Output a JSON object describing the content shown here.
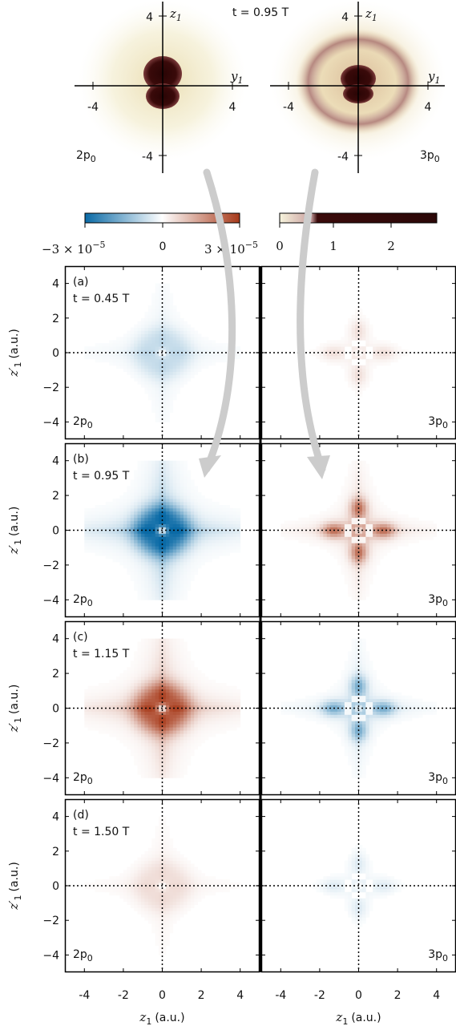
{
  "top": {
    "title": "t = 0.95 T",
    "left": {
      "state": "2p",
      "state_sub": "0",
      "vaxis_label": "z",
      "vaxis_sub": "1",
      "haxis_label": "y",
      "haxis_sub": "1",
      "ticks": {
        "left": "-4",
        "right": "4",
        "top": "4",
        "bottom": "-4"
      }
    },
    "right": {
      "state": "3p",
      "state_sub": "0",
      "vaxis_label": "z",
      "vaxis_sub": "1",
      "haxis_label": "y",
      "haxis_sub": "1",
      "ticks": {
        "left": "-4",
        "right": "4",
        "top": "4",
        "bottom": "-4"
      }
    }
  },
  "colorbars": {
    "diverging": {
      "min_label": "−3 × 10",
      "min_exp": "−5",
      "mid_label": "0",
      "max_label": "3 × 10",
      "max_exp": "−5",
      "colors": {
        "neg": "#0a6aa6",
        "zero": "#ffffff",
        "pos": "#a73a1a"
      }
    },
    "sequential": {
      "ticks": [
        "0",
        "1",
        "2"
      ],
      "colors": {
        "low": "#f7f4dd",
        "mid": "#c9a0a0",
        "high": "#2b0808"
      }
    }
  },
  "panels": {
    "rows": [
      {
        "letter": "(a)",
        "time": "t = 0.45 T"
      },
      {
        "letter": "(b)",
        "time": "t = 0.95 T"
      },
      {
        "letter": "(c)",
        "time": "t = 1.15 T"
      },
      {
        "letter": "(d)",
        "time": "t = 1.50 T"
      }
    ],
    "left_state": "2p",
    "left_sub": "0",
    "right_state": "3p",
    "right_sub": "0",
    "ytick_labels": [
      "4",
      "2",
      "0",
      "−2",
      "−4"
    ],
    "xtick_labels": [
      "-4",
      "-2",
      "0",
      "2",
      "4"
    ],
    "ylabel": "(a.u.)",
    "ylabel_var": "z′",
    "ylabel_sub": "1",
    "xlabel": "(a.u.)",
    "xlabel_var": "z",
    "xlabel_sub": "1"
  },
  "chart_data": {
    "type": "heatmap",
    "colorbar_diverging": {
      "min": -3e-05,
      "max": 3e-05
    },
    "colorbar_sequential": {
      "min": 0,
      "max": 2.7,
      "ticks": [
        0,
        1,
        2
      ]
    },
    "x_range": [
      -5,
      5
    ],
    "y_range": [
      -5,
      5
    ],
    "amplitudes": {
      "left": [
        -0.25,
        -1.0,
        0.9,
        0.18
      ],
      "right": [
        0.22,
        1.0,
        -0.75,
        -0.18
      ]
    }
  }
}
